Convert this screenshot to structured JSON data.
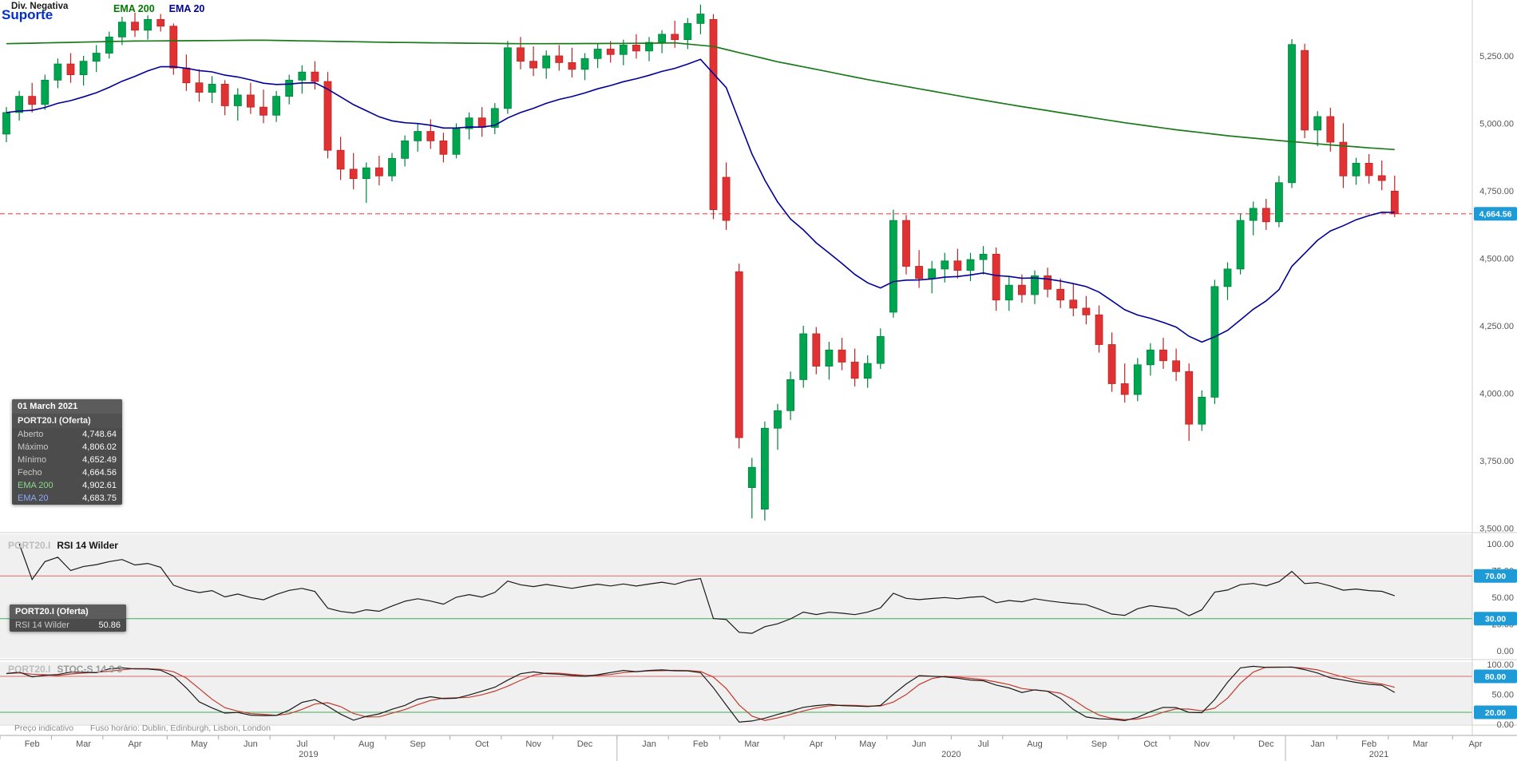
{
  "annotations": {
    "divergence": "Div. Negativa",
    "support": "Suporte"
  },
  "legend": {
    "ema200": "EMA 200",
    "ema20": "EMA 20"
  },
  "tooltip_main": {
    "date": "01 March 2021",
    "instrument": "PORT20.I (Oferta)",
    "rows": [
      {
        "label": "Aberto",
        "value": "4,748.64"
      },
      {
        "label": "Máximo",
        "value": "4,806.02"
      },
      {
        "label": "Mínimo",
        "value": "4,652.49"
      },
      {
        "label": "Fecho",
        "value": "4,664.56"
      },
      {
        "label": "EMA 200",
        "value": "4,902.61"
      },
      {
        "label": "EMA 20",
        "value": "4,683.75"
      }
    ]
  },
  "tooltip_rsi": {
    "instrument": "PORT20.I (Oferta)",
    "row": {
      "label": "RSI 14 Wilder",
      "value": "50.86"
    }
  },
  "rsi_panel": {
    "watermark": "PORT20.I",
    "title": "RSI 14 Wilder",
    "axis": [
      {
        "label": "100.00",
        "value": 100
      },
      {
        "label": "75.00",
        "value": 75
      },
      {
        "label": "50.00",
        "value": 50
      },
      {
        "label": "25.00",
        "value": 25
      },
      {
        "label": "0.00",
        "value": 0
      }
    ],
    "tags": [
      {
        "label": "70.00",
        "value": 70
      },
      {
        "label": "30.00",
        "value": 30
      }
    ],
    "upper_level": 70,
    "lower_level": 30
  },
  "stoch_panel": {
    "watermark": "PORT20.I",
    "title": "STOC-S 14 3 3",
    "axis": [
      {
        "label": "100.00",
        "value": 100
      },
      {
        "label": "50.00",
        "value": 50
      },
      {
        "label": "0.00",
        "value": 0
      }
    ],
    "tags": [
      {
        "label": "80.00",
        "value": 80
      },
      {
        "label": "20.00",
        "value": 20
      }
    ],
    "upper_level": 80,
    "lower_level": 20
  },
  "price_axis": {
    "labels": [
      {
        "label": "5,250.00",
        "value": 5250
      },
      {
        "label": "5,000.00",
        "value": 5000
      },
      {
        "label": "4,750.00",
        "value": 4750
      },
      {
        "label": "4,500.00",
        "value": 4500
      },
      {
        "label": "4,250.00",
        "value": 4250
      },
      {
        "label": "4,000.00",
        "value": 4000
      },
      {
        "label": "3,750.00",
        "value": 3750
      },
      {
        "label": "3,500.00",
        "value": 3500
      }
    ],
    "tag": {
      "label": "4,664.56",
      "value": 4664.56
    }
  },
  "footer": {
    "indicative": "Preço indicativo",
    "timezone": "Fuso horário: Dublin, Edinburgh, Lisbon, London"
  },
  "chart_data": {
    "type": "candlestick",
    "instrument": "PORT20.I",
    "ylim": [
      3486,
      5457
    ],
    "support_level": 4664.56,
    "colors": {
      "up": "#00A64F",
      "up_border": "#00843C",
      "down": "#E03232",
      "down_border": "#C02323",
      "ema200": "#1B7A1B",
      "ema20": "#000099",
      "support": "#FF5A5A",
      "tag_bg": "#1E9BD7",
      "level_upper": "#D96B6B",
      "level_lower": "#3FAE57",
      "rsi": "#1a1a1a",
      "stoch_k": "#1a1a1a",
      "stoch_d": "#C23B2E"
    },
    "candles": [
      [
        4960,
        5060,
        4930,
        5040
      ],
      [
        5040,
        5120,
        5010,
        5100
      ],
      [
        5100,
        5150,
        5040,
        5070
      ],
      [
        5070,
        5180,
        5050,
        5160
      ],
      [
        5160,
        5240,
        5130,
        5220
      ],
      [
        5220,
        5260,
        5150,
        5180
      ],
      [
        5180,
        5250,
        5140,
        5230
      ],
      [
        5230,
        5290,
        5190,
        5260
      ],
      [
        5260,
        5340,
        5240,
        5320
      ],
      [
        5320,
        5395,
        5290,
        5375
      ],
      [
        5375,
        5410,
        5320,
        5345
      ],
      [
        5345,
        5400,
        5310,
        5385
      ],
      [
        5385,
        5405,
        5340,
        5360
      ],
      [
        5360,
        5370,
        5180,
        5205
      ],
      [
        5205,
        5255,
        5120,
        5150
      ],
      [
        5150,
        5200,
        5080,
        5115
      ],
      [
        5115,
        5175,
        5075,
        5145
      ],
      [
        5145,
        5160,
        5030,
        5065
      ],
      [
        5065,
        5130,
        5010,
        5105
      ],
      [
        5105,
        5150,
        5035,
        5060
      ],
      [
        5060,
        5125,
        5000,
        5030
      ],
      [
        5030,
        5120,
        5005,
        5100
      ],
      [
        5100,
        5180,
        5070,
        5160
      ],
      [
        5160,
        5215,
        5110,
        5190
      ],
      [
        5190,
        5230,
        5125,
        5155
      ],
      [
        5155,
        5190,
        4870,
        4900
      ],
      [
        4900,
        4950,
        4790,
        4830
      ],
      [
        4830,
        4890,
        4755,
        4795
      ],
      [
        4795,
        4855,
        4705,
        4835
      ],
      [
        4835,
        4880,
        4770,
        4805
      ],
      [
        4805,
        4890,
        4785,
        4870
      ],
      [
        4870,
        4955,
        4840,
        4935
      ],
      [
        4935,
        5000,
        4895,
        4970
      ],
      [
        4970,
        5015,
        4905,
        4935
      ],
      [
        4935,
        4965,
        4855,
        4885
      ],
      [
        4885,
        5000,
        4870,
        4980
      ],
      [
        4980,
        5040,
        4940,
        5020
      ],
      [
        5020,
        5060,
        4950,
        4985
      ],
      [
        4985,
        5075,
        4960,
        5055
      ],
      [
        5055,
        5305,
        5035,
        5280
      ],
      [
        5280,
        5320,
        5200,
        5230
      ],
      [
        5230,
        5285,
        5175,
        5205
      ],
      [
        5205,
        5270,
        5165,
        5250
      ],
      [
        5250,
        5290,
        5195,
        5225
      ],
      [
        5225,
        5280,
        5170,
        5200
      ],
      [
        5200,
        5260,
        5160,
        5240
      ],
      [
        5240,
        5295,
        5205,
        5275
      ],
      [
        5275,
        5305,
        5225,
        5255
      ],
      [
        5255,
        5310,
        5215,
        5290
      ],
      [
        5290,
        5330,
        5240,
        5268
      ],
      [
        5268,
        5320,
        5230,
        5300
      ],
      [
        5300,
        5345,
        5260,
        5330
      ],
      [
        5330,
        5380,
        5280,
        5310
      ],
      [
        5310,
        5390,
        5275,
        5370
      ],
      [
        5370,
        5440,
        5330,
        5405
      ],
      [
        5385,
        5405,
        4645,
        4680
      ],
      [
        4800,
        4855,
        4605,
        4640
      ],
      [
        4450,
        4480,
        3795,
        3835
      ],
      [
        3650,
        3760,
        3536,
        3725
      ],
      [
        3570,
        3895,
        3528,
        3870
      ],
      [
        3870,
        3960,
        3790,
        3935
      ],
      [
        3935,
        4080,
        3900,
        4050
      ],
      [
        4050,
        4250,
        4020,
        4220
      ],
      [
        4220,
        4245,
        4070,
        4100
      ],
      [
        4100,
        4190,
        4050,
        4160
      ],
      [
        4160,
        4205,
        4085,
        4115
      ],
      [
        4115,
        4165,
        4025,
        4055
      ],
      [
        4055,
        4140,
        4020,
        4110
      ],
      [
        4110,
        4240,
        4090,
        4210
      ],
      [
        4300,
        4680,
        4280,
        4640
      ],
      [
        4640,
        4660,
        4440,
        4470
      ],
      [
        4470,
        4530,
        4390,
        4425
      ],
      [
        4425,
        4490,
        4370,
        4460
      ],
      [
        4460,
        4520,
        4410,
        4490
      ],
      [
        4490,
        4535,
        4425,
        4455
      ],
      [
        4455,
        4520,
        4415,
        4495
      ],
      [
        4495,
        4545,
        4440,
        4515
      ],
      [
        4515,
        4540,
        4305,
        4345
      ],
      [
        4345,
        4430,
        4305,
        4400
      ],
      [
        4400,
        4440,
        4335,
        4365
      ],
      [
        4365,
        4455,
        4330,
        4435
      ],
      [
        4435,
        4465,
        4355,
        4385
      ],
      [
        4385,
        4425,
        4315,
        4345
      ],
      [
        4345,
        4405,
        4285,
        4315
      ],
      [
        4315,
        4360,
        4255,
        4290
      ],
      [
        4290,
        4325,
        4150,
        4180
      ],
      [
        4180,
        4225,
        4005,
        4035
      ],
      [
        4035,
        4110,
        3965,
        3995
      ],
      [
        3995,
        4130,
        3970,
        4105
      ],
      [
        4105,
        4185,
        4065,
        4160
      ],
      [
        4160,
        4205,
        4090,
        4120
      ],
      [
        4120,
        4165,
        4045,
        4080
      ],
      [
        4080,
        4110,
        3823,
        3885
      ],
      [
        3885,
        4010,
        3860,
        3985
      ],
      [
        3985,
        4420,
        3960,
        4395
      ],
      [
        4395,
        4485,
        4345,
        4460
      ],
      [
        4460,
        4665,
        4440,
        4640
      ],
      [
        4640,
        4710,
        4585,
        4685
      ],
      [
        4685,
        4720,
        4605,
        4635
      ],
      [
        4635,
        4805,
        4615,
        4780
      ],
      [
        4780,
        5312,
        4760,
        5292
      ],
      [
        5270,
        5295,
        4945,
        4975
      ],
      [
        4975,
        5045,
        4915,
        5025
      ],
      [
        5025,
        5058,
        4895,
        4930
      ],
      [
        4930,
        5000,
        4760,
        4805
      ],
      [
        4805,
        4872,
        4772,
        4852
      ],
      [
        4852,
        4886,
        4776,
        4806
      ],
      [
        4806,
        4862,
        4752,
        4788
      ],
      [
        4748.64,
        4806.02,
        4652.49,
        4664.56
      ]
    ],
    "ema200_points": [
      [
        0,
        5295
      ],
      [
        10,
        5305
      ],
      [
        20,
        5308
      ],
      [
        30,
        5300
      ],
      [
        40,
        5295
      ],
      [
        48,
        5296
      ],
      [
        52,
        5298
      ],
      [
        55,
        5285
      ],
      [
        57,
        5262
      ],
      [
        60,
        5228
      ],
      [
        63,
        5200
      ],
      [
        67,
        5162
      ],
      [
        71,
        5128
      ],
      [
        75,
        5094
      ],
      [
        79,
        5062
      ],
      [
        83,
        5032
      ],
      [
        87,
        5002
      ],
      [
        91,
        4976
      ],
      [
        95,
        4954
      ],
      [
        99,
        4936
      ],
      [
        103,
        4920
      ],
      [
        106,
        4909
      ],
      [
        108,
        4902.61
      ]
    ],
    "xaxis": {
      "months": [
        [
          "Feb",
          0
        ],
        [
          "Mar",
          4
        ],
        [
          "Apr",
          8
        ],
        [
          "May",
          13
        ],
        [
          "Jun",
          17
        ],
        [
          "Jul",
          21
        ],
        [
          "Aug",
          26
        ],
        [
          "Sep",
          30
        ],
        [
          "Oct",
          35
        ],
        [
          "Nov",
          39
        ],
        [
          "Dec",
          43
        ],
        [
          "Jan",
          48
        ],
        [
          "Feb",
          52
        ],
        [
          "Mar",
          56
        ],
        [
          "Apr",
          61
        ],
        [
          "May",
          65
        ],
        [
          "Jun",
          69
        ],
        [
          "Jul",
          74
        ],
        [
          "Aug",
          78
        ],
        [
          "Sep",
          83
        ],
        [
          "Oct",
          87
        ],
        [
          "Nov",
          91
        ],
        [
          "Dec",
          96
        ],
        [
          "Jan",
          100
        ],
        [
          "Feb",
          104
        ],
        [
          "Mar",
          108
        ],
        [
          "Apr",
          113
        ]
      ],
      "years": [
        [
          "2019",
          0,
          48
        ],
        [
          "2020",
          48,
          100
        ],
        [
          "2021",
          100,
          115
        ]
      ]
    },
    "indicators": {
      "ema": [
        200,
        20
      ],
      "rsi": "RSI 14 Wilder",
      "stoch": "STOC-S 14 3 3"
    }
  }
}
